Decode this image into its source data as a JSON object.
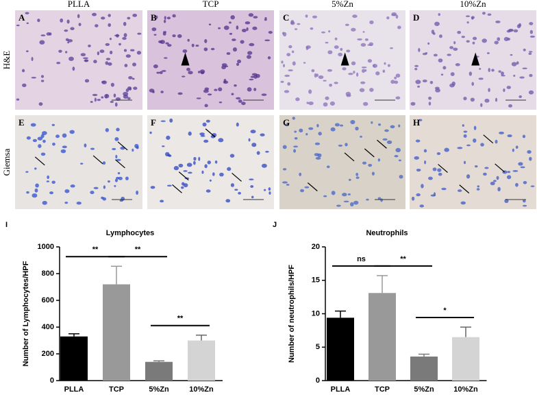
{
  "image_panels": {
    "columns": [
      "PLLA",
      "TCP",
      "5%Zn",
      "10%Zn"
    ],
    "rows": [
      "H&E",
      "Giemsa"
    ],
    "letters": [
      "A",
      "B",
      "C",
      "D",
      "E",
      "F",
      "G",
      "H"
    ]
  },
  "chart_data": [
    {
      "panel_label": "I",
      "type": "bar",
      "title": "Lymphocytes",
      "y_label": "Number of Lymphocytes/HPF",
      "categories": [
        "PLLA",
        "TCP",
        "5%Zn",
        "10%Zn"
      ],
      "values": [
        330,
        720,
        140,
        300
      ],
      "errors": [
        20,
        135,
        8,
        40
      ],
      "colors": [
        "#000000",
        "#999999",
        "#7a7a7a",
        "#d4d4d4"
      ],
      "ylim": [
        0,
        1000
      ],
      "yticks": [
        0,
        200,
        400,
        600,
        800,
        1000
      ],
      "comparisons": [
        {
          "label": "**",
          "pair": [
            0,
            1
          ]
        },
        {
          "label": "**",
          "pair": [
            1,
            2
          ]
        },
        {
          "label": "**",
          "pair": [
            2,
            3
          ]
        }
      ]
    },
    {
      "panel_label": "J",
      "type": "bar",
      "title": "Neutrophils",
      "y_label": "Number of neutrophils/HPF",
      "categories": [
        "PLLA",
        "TCP",
        "5%Zn",
        "10%Zn"
      ],
      "values": [
        9.4,
        13.1,
        3.6,
        6.5
      ],
      "errors": [
        1.0,
        2.6,
        0.35,
        1.5
      ],
      "colors": [
        "#000000",
        "#999999",
        "#7a7a7a",
        "#d4d4d4"
      ],
      "ylim": [
        0,
        20
      ],
      "yticks": [
        0,
        5,
        10,
        15,
        20
      ],
      "comparisons": [
        {
          "label": "ns",
          "pair": [
            0,
            1
          ]
        },
        {
          "label": "**",
          "pair": [
            1,
            2
          ]
        },
        {
          "label": "*",
          "pair": [
            2,
            3
          ]
        }
      ]
    }
  ]
}
